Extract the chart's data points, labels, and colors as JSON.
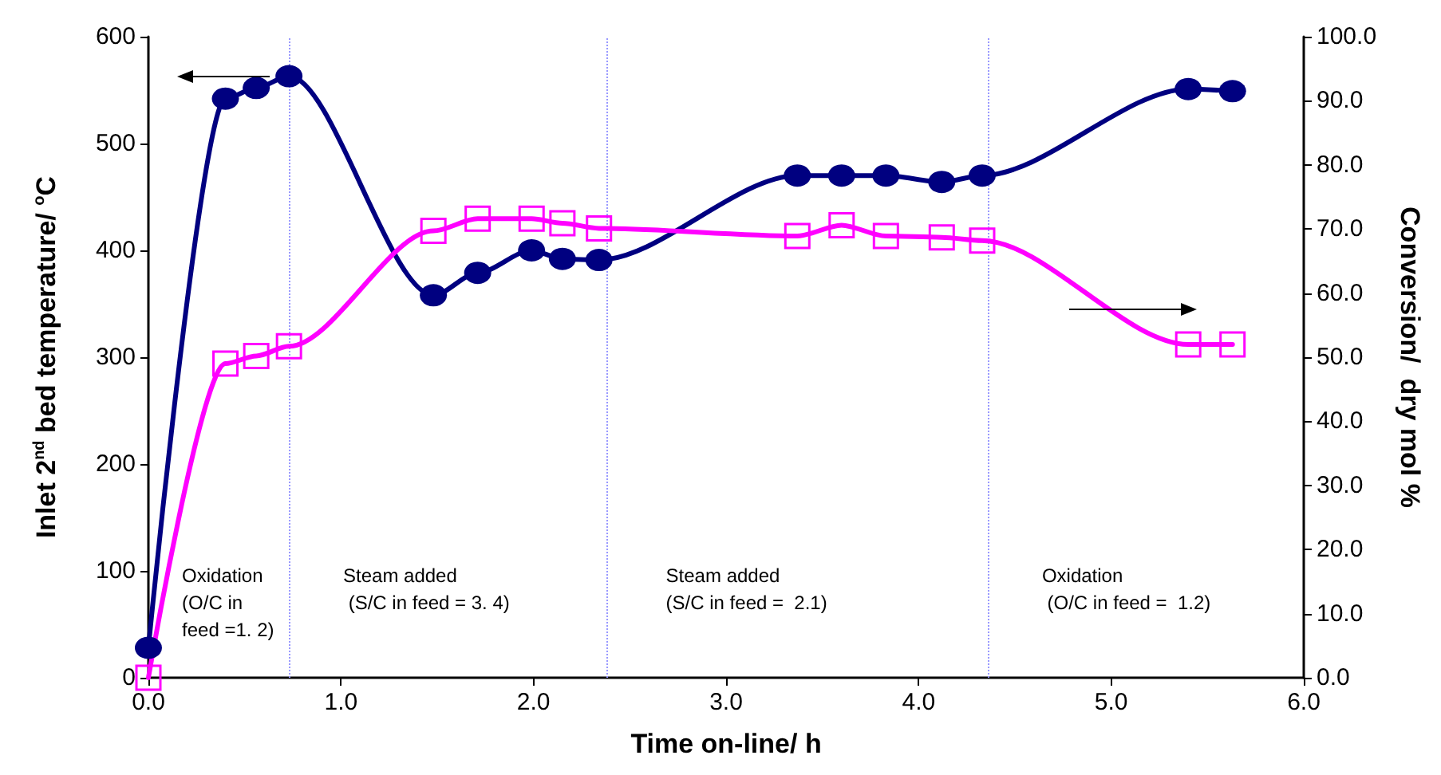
{
  "chart_data": {
    "type": "line",
    "xlabel": "Time on-line/ h",
    "ylabel": "Inlet 2$^{nd}$ bed temperature/ $^{o}$C",
    "y2label": "Conversion/  dry mol %",
    "xlim": [
      0,
      6
    ],
    "xticks": [
      {
        "value": 0,
        "label": "0.0"
      },
      {
        "value": 1,
        "label": "1.0"
      },
      {
        "value": 2,
        "label": "2.0"
      },
      {
        "value": 3,
        "label": "3.0"
      },
      {
        "value": 4,
        "label": "4.0"
      },
      {
        "value": 5,
        "label": "5.0"
      },
      {
        "value": 6,
        "label": "6.0"
      }
    ],
    "ylim": [
      0,
      600
    ],
    "yticks": [
      0,
      100,
      200,
      300,
      400,
      500,
      600
    ],
    "y2lim": [
      0,
      100
    ],
    "y2ticks": [
      {
        "value": 0,
        "label": "0.0"
      },
      {
        "value": 10,
        "label": "10.0"
      },
      {
        "value": 20,
        "label": "20.0"
      },
      {
        "value": 30,
        "label": "30.0"
      },
      {
        "value": 40,
        "label": "40.0"
      },
      {
        "value": 50,
        "label": "50.0"
      },
      {
        "value": 60,
        "label": "60.0"
      },
      {
        "value": 70,
        "label": "70.0"
      },
      {
        "value": 80,
        "label": "80.0"
      },
      {
        "value": 90,
        "label": "90.0"
      },
      {
        "value": 100,
        "label": "100.0"
      }
    ],
    "x": [
      0,
      0.4,
      0.56,
      0.73,
      1.48,
      1.71,
      1.99,
      2.15,
      2.34,
      3.37,
      3.6,
      3.83,
      4.12,
      4.33,
      5.4,
      5.63
    ],
    "series": [
      {
        "color": "#000080",
        "marker": "circle",
        "values": [
          28,
          542,
          552,
          563,
          358,
          379,
          400,
          392,
          391,
          470,
          470,
          470,
          464,
          470,
          551,
          549
        ]
      },
      {
        "color": "#ff00ff",
        "marker": "square",
        "axis": "y2",
        "values": [
          0,
          49,
          50.2,
          51.7,
          69.7,
          71.6,
          71.6,
          70.9,
          70.1,
          68.9,
          70.6,
          68.9,
          68.7,
          68.2,
          52,
          52
        ]
      }
    ],
    "ref_lines": [
      {
        "axis": "x",
        "value": 0.73,
        "color": "#9999ff",
        "line_style": "dotted"
      },
      {
        "axis": "x",
        "value": 2.38,
        "color": "#9999ff",
        "line_style": "dotted"
      },
      {
        "axis": "x",
        "value": 4.36,
        "color": "#9999ff",
        "line_style": "dotted"
      }
    ],
    "annotations": [
      "Oxidation\n(O/C in\nfeed =1. 2)",
      "Steam added\n (S/C in feed = 3. 4)",
      "Steam added\n(S/C in feed =  2.1)",
      "Oxidation\n (O/C in feed =  1.2)"
    ],
    "grid": false,
    "line_style": "solid"
  }
}
